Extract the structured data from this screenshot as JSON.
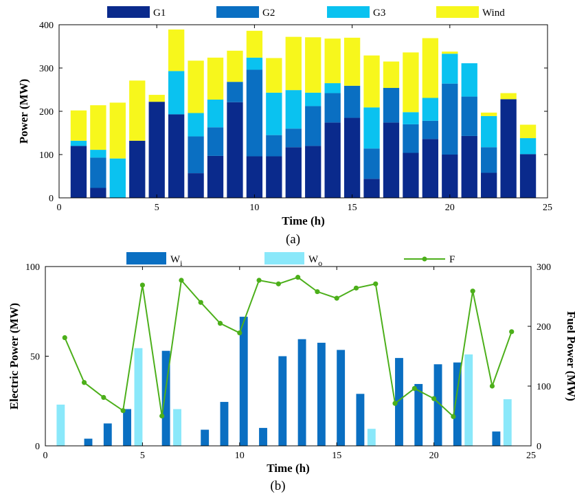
{
  "chart_data": [
    {
      "type": "bar",
      "stacked": true,
      "panel_label": "(a)",
      "title": "",
      "xlabel": "Time (h)",
      "ylabel": "Power (MW)",
      "xlim": [
        0,
        25
      ],
      "ylim": [
        0,
        400
      ],
      "xticks": [
        0,
        5,
        10,
        15,
        20,
        25
      ],
      "yticks": [
        0,
        100,
        200,
        300,
        400
      ],
      "grid": false,
      "legend": "top, horizontal",
      "x": [
        1,
        2,
        3,
        4,
        5,
        6,
        7,
        8,
        9,
        10,
        11,
        12,
        13,
        14,
        15,
        16,
        17,
        18,
        19,
        20,
        21,
        22,
        23,
        24
      ],
      "series": [
        {
          "name": "G1",
          "color": "#0a2a8c",
          "values": [
            120,
            23,
            0,
            132,
            222,
            193,
            57,
            97,
            221,
            96,
            96,
            117,
            120,
            174,
            185,
            44,
            174,
            104,
            136,
            100,
            143,
            58,
            228,
            101
          ]
        },
        {
          "name": "G2",
          "color": "#0a6fc2",
          "values": [
            0,
            70,
            0,
            0,
            0,
            0,
            85,
            66,
            47,
            200,
            49,
            43,
            92,
            68,
            74,
            70,
            80,
            66,
            42,
            164,
            91,
            59,
            0,
            0
          ]
        },
        {
          "name": "G3",
          "color": "#0ac2f0",
          "values": [
            12,
            18,
            91,
            0,
            0,
            100,
            54,
            64,
            0,
            28,
            98,
            89,
            31,
            23,
            0,
            95,
            0,
            28,
            53,
            69,
            77,
            72,
            0,
            37
          ]
        },
        {
          "name": "Wind",
          "color": "#f7f71c",
          "values": [
            70,
            103,
            129,
            139,
            16,
            96,
            121,
            97,
            72,
            62,
            80,
            123,
            128,
            103,
            111,
            120,
            61,
            138,
            138,
            5,
            0,
            8,
            14,
            31
          ]
        }
      ]
    },
    {
      "type": "bar+line",
      "panel_label": "(b)",
      "title": "",
      "xlabel": "Time (h)",
      "ylabel": "Electric Power (MW)",
      "y2label": "Fuel Power (MW)",
      "xlim": [
        0,
        25
      ],
      "ylim": [
        0,
        100
      ],
      "y2lim": [
        0,
        300
      ],
      "xticks": [
        0,
        5,
        10,
        15,
        20,
        25
      ],
      "yticks": [
        0,
        50,
        100
      ],
      "y2ticks": [
        0,
        100,
        200,
        300
      ],
      "grid": false,
      "legend": "top, horizontal",
      "x": [
        1,
        2,
        3,
        4,
        5,
        6,
        7,
        8,
        9,
        10,
        11,
        12,
        13,
        14,
        15,
        16,
        17,
        18,
        19,
        20,
        21,
        22,
        23,
        24
      ],
      "series": [
        {
          "name": "W",
          "subscript": "i",
          "kind": "bar",
          "axis": "left",
          "color": "#0a6fc2",
          "values": [
            0,
            4,
            12.5,
            20.5,
            0,
            53,
            0,
            9,
            24.5,
            72,
            10,
            50,
            59.5,
            57.5,
            53.5,
            29,
            0,
            49,
            34.5,
            45.5,
            46.5,
            0,
            8,
            0
          ]
        },
        {
          "name": "W",
          "subscript": "o",
          "kind": "bar",
          "axis": "left",
          "color": "#8ae8fa",
          "values": [
            23,
            0,
            0,
            0,
            54.5,
            0,
            20.5,
            0,
            0,
            0,
            0,
            0,
            0,
            0,
            0,
            0,
            9.5,
            0,
            0,
            0,
            0,
            51,
            0,
            26
          ]
        },
        {
          "name": "F",
          "kind": "line",
          "axis": "right",
          "color": "#4caf1a",
          "values": [
            181,
            106,
            81,
            59,
            269,
            50,
            277,
            240,
            205,
            189,
            277,
            271,
            282,
            258,
            247,
            264,
            271,
            71,
            96,
            79,
            49,
            259,
            100,
            191
          ]
        }
      ]
    }
  ]
}
